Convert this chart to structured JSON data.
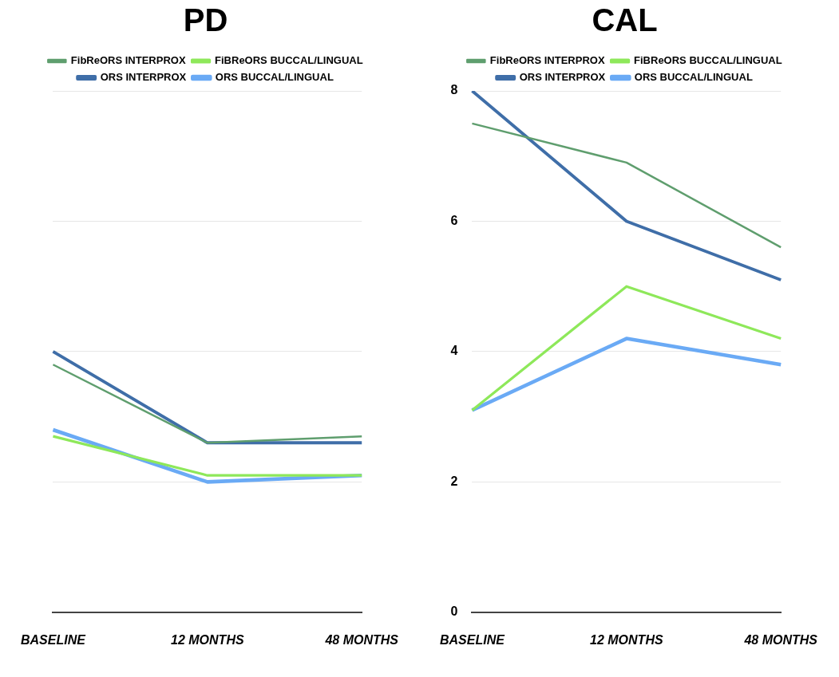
{
  "chart_data": [
    {
      "type": "line",
      "title": "PD",
      "categories": [
        "BASELINE",
        "12 MONTHS",
        "48 MONTHS"
      ],
      "ylim": [
        0,
        8
      ],
      "yticks": [
        0,
        2,
        4,
        6,
        8
      ],
      "tick_labels": "x",
      "grid": "y",
      "legend": "top",
      "marker": "none",
      "series": [
        {
          "name": "FibReORS INTERPROX",
          "color": "#5f9e6e",
          "values": [
            3.8,
            2.6,
            2.7
          ]
        },
        {
          "name": "FiBReORS BUCCAL/LINGUAL",
          "color": "#8ee85a",
          "values": [
            2.7,
            2.1,
            2.1
          ]
        },
        {
          "name": "ORS INTERPROX",
          "color": "#3f6ea8",
          "values": [
            4.0,
            2.6,
            2.6
          ]
        },
        {
          "name": "ORS BUCCAL/LINGUAL",
          "color": "#6aaaf5",
          "values": [
            2.8,
            2.0,
            2.1
          ]
        }
      ]
    },
    {
      "type": "line",
      "title": "CAL",
      "categories": [
        "BASELINE",
        "12 MONTHS",
        "48 MONTHS"
      ],
      "ylim": [
        0,
        8
      ],
      "yticks": [
        0,
        2,
        4,
        6,
        8
      ],
      "grid": "y",
      "legend": "top",
      "marker": "none",
      "series": [
        {
          "name": "FibReORS INTERPROX",
          "color": "#5f9e6e",
          "values": [
            7.5,
            6.9,
            5.6
          ]
        },
        {
          "name": "FiBReORS BUCCAL/LINGUAL",
          "color": "#8ee85a",
          "values": [
            3.1,
            5.0,
            4.2
          ]
        },
        {
          "name": "ORS INTERPROX",
          "color": "#3f6ea8",
          "values": [
            8.0,
            6.0,
            5.1
          ]
        },
        {
          "name": "ORS BUCCAL/LINGUAL",
          "color": "#6aaaf5",
          "values": [
            3.1,
            4.2,
            3.8
          ]
        }
      ]
    }
  ]
}
